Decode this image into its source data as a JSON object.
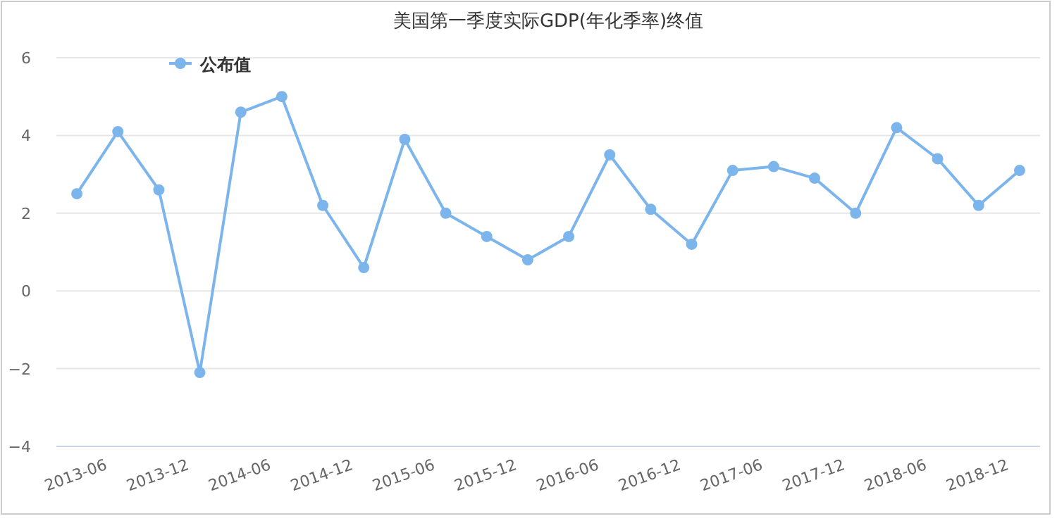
{
  "chart_data": {
    "type": "line",
    "title": "美国第一季度实际GDP(年化季率)终值",
    "categories": [
      "2013-06",
      null,
      "2013-12",
      null,
      "2014-06",
      null,
      "2014-12",
      null,
      "2015-06",
      null,
      "2015-12",
      null,
      "2016-06",
      null,
      "2016-12",
      null,
      "2017-06",
      null,
      "2017-12",
      null,
      "2018-06",
      null,
      "2018-12",
      null
    ],
    "series": [
      {
        "name": "公布值",
        "color": "#7cb5ec",
        "values": [
          2.5,
          4.1,
          2.6,
          -2.1,
          4.6,
          5.0,
          2.2,
          0.6,
          3.9,
          2.0,
          1.4,
          0.8,
          1.4,
          3.5,
          2.1,
          1.2,
          3.1,
          3.2,
          2.9,
          2.0,
          4.2,
          3.4,
          2.2,
          3.1
        ]
      }
    ],
    "ylim": [
      -4,
      6
    ],
    "yticks": [
      -4,
      -2,
      0,
      2,
      4,
      6
    ],
    "grid": "y",
    "legend": "top left",
    "marker": "circle",
    "line_style": "solid"
  }
}
